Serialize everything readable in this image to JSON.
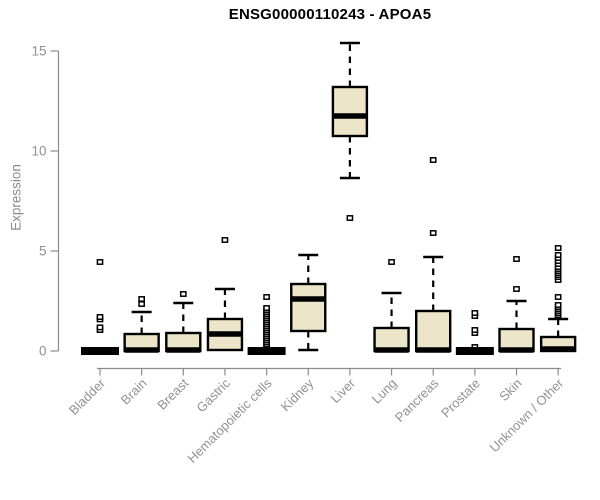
{
  "title": "ENSG00000110243 - APOA5",
  "colors": {
    "background": "#ffffff",
    "box_fill": "#ece5c9",
    "box_stroke": "#000000",
    "median": "#000000",
    "whisker": "#000000",
    "outlier_fill": "#ffffff",
    "outlier_stroke": "#000000",
    "axis_line": "#8c8c8c",
    "tick_text": "#929292",
    "title_text": "#000000"
  },
  "chart_data": {
    "type": "boxplot",
    "title": "ENSG00000110243 - APOA5",
    "xlabel": "",
    "ylabel": "Expression",
    "ylim": [
      0,
      15.5
    ],
    "yticks": [
      0,
      5,
      10,
      15
    ],
    "grid": "off",
    "legend": "none",
    "categories": [
      "Bladder",
      "Brain",
      "Breast",
      "Gastric",
      "Hematopoietic cells",
      "Kidney",
      "Liver",
      "Lung",
      "Pancreas",
      "Prostate",
      "Skin",
      "Unknown / Other"
    ],
    "series": [
      {
        "label": "Bladder",
        "low": 0,
        "q1": 0,
        "median": 0,
        "q3": 0,
        "high": 0,
        "outliers": [
          1.05,
          1.18,
          1.58,
          1.7,
          4.45
        ]
      },
      {
        "label": "Brain",
        "low": 0,
        "q1": 0,
        "median": 0.05,
        "q3": 0.85,
        "high": 1.95,
        "outliers": [
          2.35,
          2.6
        ]
      },
      {
        "label": "Breast",
        "low": 0,
        "q1": 0,
        "median": 0.05,
        "q3": 0.9,
        "high": 2.4,
        "outliers": [
          2.85
        ]
      },
      {
        "label": "Gastric",
        "low": 0.05,
        "q1": 0.05,
        "median": 0.85,
        "q3": 1.6,
        "high": 3.1,
        "outliers": [
          5.55
        ]
      },
      {
        "label": "Hematopoietic cells",
        "low": 0,
        "q1": 0,
        "median": 0,
        "q3": 0,
        "high": 0,
        "outliers": [
          0.15,
          0.25,
          0.35,
          0.45,
          0.55,
          0.65,
          0.75,
          0.85,
          0.95,
          1.05,
          1.15,
          1.25,
          1.35,
          1.45,
          1.55,
          1.65,
          1.75,
          1.85,
          1.95,
          2.05,
          2.15,
          2.7
        ]
      },
      {
        "label": "Kidney",
        "low": 0.05,
        "q1": 1.0,
        "median": 2.6,
        "q3": 3.35,
        "high": 4.8,
        "outliers": []
      },
      {
        "label": "Liver",
        "low": 8.65,
        "q1": 10.75,
        "median": 11.75,
        "q3": 13.2,
        "high": 15.4,
        "outliers": [
          6.65
        ]
      },
      {
        "label": "Lung",
        "low": 0,
        "q1": 0,
        "median": 0.05,
        "q3": 1.15,
        "high": 2.9,
        "outliers": [
          4.45
        ]
      },
      {
        "label": "Pancreas",
        "low": 0,
        "q1": 0,
        "median": 0.05,
        "q3": 2.0,
        "high": 4.7,
        "outliers": [
          5.9,
          9.55
        ]
      },
      {
        "label": "Prostate",
        "low": 0,
        "q1": 0,
        "median": 0,
        "q3": 0,
        "high": 0,
        "outliers": [
          0.2,
          0.9,
          1.05,
          1.75,
          1.9
        ]
      },
      {
        "label": "Skin",
        "low": 0,
        "q1": 0,
        "median": 0.05,
        "q3": 1.1,
        "high": 2.5,
        "outliers": [
          3.1,
          4.6
        ]
      },
      {
        "label": "Unknown / Other",
        "low": 0,
        "q1": 0,
        "median": 0.1,
        "q3": 0.7,
        "high": 1.6,
        "outliers": [
          1.7,
          1.8,
          1.9,
          2.0,
          2.1,
          2.2,
          2.3,
          2.7,
          3.55,
          3.7,
          3.8,
          3.9,
          4.0,
          4.1,
          4.2,
          4.35,
          4.5,
          4.65,
          4.8,
          5.15
        ]
      }
    ]
  }
}
